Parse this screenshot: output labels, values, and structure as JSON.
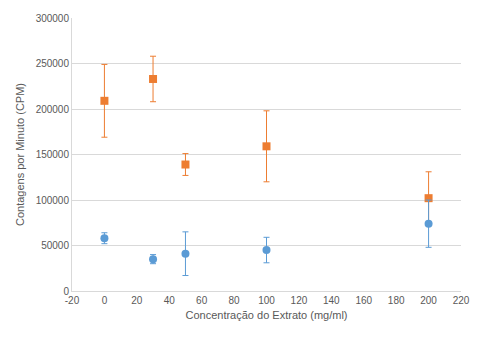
{
  "chart_data": {
    "type": "scatter",
    "x_label": "Concentração do Extrato (mg/ml)",
    "y_label": "Contagens por Minuto (CPM)",
    "xlim": [
      -20,
      220
    ],
    "xticks": [
      -20,
      0,
      20,
      40,
      60,
      80,
      100,
      120,
      140,
      160,
      180,
      200,
      220
    ],
    "ylim": [
      0,
      300000
    ],
    "yticks": [
      0,
      50000,
      100000,
      150000,
      200000,
      250000,
      300000
    ],
    "grid": true,
    "series": [
      {
        "color": "#ed7d31",
        "marker": "square",
        "x": [
          0,
          30,
          50,
          100,
          200
        ],
        "values": [
          209000,
          233000,
          139000,
          159000,
          102000
        ],
        "errors": [
          40000,
          25000,
          12000,
          39000,
          29000
        ]
      },
      {
        "color": "#5b9bd5",
        "marker": "circle",
        "x": [
          0,
          30,
          50,
          100,
          200
        ],
        "values": [
          58000,
          35000,
          41000,
          45000,
          74000
        ],
        "errors": [
          6000,
          5000,
          24000,
          14000,
          26000
        ]
      }
    ]
  }
}
